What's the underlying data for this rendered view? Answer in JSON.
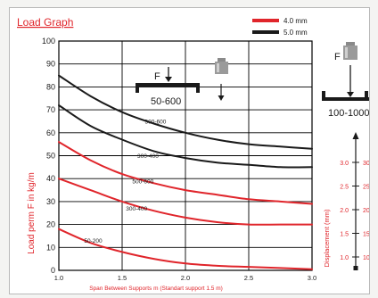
{
  "title": "Load Graph",
  "colors": {
    "red": "#e0252b",
    "black": "#1a1a1a",
    "grid": "#000000"
  },
  "legend": [
    {
      "label": "4.0 mm",
      "color": "#e0252b"
    },
    {
      "label": "5.0 mm",
      "color": "#1a1a1a"
    }
  ],
  "icons": {
    "left_load_label": "F",
    "left_range": "50-600",
    "right_load_label": "F",
    "right_range": "100-1000"
  },
  "chart_data": {
    "type": "line",
    "title": "Load Graph",
    "xlabel": "Span Between Supports m (Standart support 1.5 m)",
    "ylabel": "Load perm F in kg/m",
    "y2label": "Displacement (mm)",
    "xlim": [
      1.0,
      3.0
    ],
    "ylim": [
      0,
      100
    ],
    "x_ticks": [
      "1.0",
      "1.5",
      "2.0",
      "2.5",
      "3.0"
    ],
    "y_ticks": [
      "0",
      "10",
      "20",
      "30",
      "40",
      "50",
      "60",
      "70",
      "80",
      "90",
      "100"
    ],
    "grid": true,
    "legend_position": "top-right",
    "series": [
      {
        "name": "",
        "color": "#1a1a1a",
        "x": [
          1.0,
          1.25,
          1.5,
          1.75,
          2.0,
          2.25,
          2.5,
          2.75,
          3.0
        ],
        "y": [
          85,
          76,
          69,
          64,
          60,
          57,
          55,
          54,
          53
        ]
      },
      {
        "name": "",
        "color": "#1a1a1a",
        "x": [
          1.0,
          1.25,
          1.5,
          1.75,
          2.0,
          2.25,
          2.5,
          2.75,
          3.0
        ],
        "y": [
          72,
          63,
          57,
          52,
          49,
          47,
          46,
          45,
          45
        ]
      },
      {
        "name": "",
        "color": "#e0252b",
        "x": [
          1.0,
          1.25,
          1.5,
          1.75,
          2.0,
          2.25,
          2.5,
          2.75,
          3.0
        ],
        "y": [
          56,
          48,
          42,
          38,
          35,
          33,
          31,
          30,
          29
        ]
      },
      {
        "name": "",
        "color": "#e0252b",
        "x": [
          1.0,
          1.25,
          1.5,
          1.75,
          2.0,
          2.25,
          2.5,
          2.75,
          3.0
        ],
        "y": [
          40,
          35,
          30,
          26,
          23,
          21,
          20,
          20,
          20
        ]
      },
      {
        "name": "",
        "color": "#e0252b",
        "x": [
          1.0,
          1.25,
          1.5,
          1.75,
          2.0,
          2.25,
          2.5,
          2.75,
          3.0
        ],
        "y": [
          18,
          12,
          8,
          5,
          3,
          2,
          1.5,
          1,
          0.5
        ]
      }
    ],
    "annotations": [
      {
        "text": "500-600",
        "x": 1.68,
        "y": 64,
        "color": "#1a1a1a"
      },
      {
        "text": "300-400",
        "x": 1.62,
        "y": 49,
        "color": "#1a1a1a"
      },
      {
        "text": "500-600",
        "x": 1.58,
        "y": 38,
        "color": "#e0252b"
      },
      {
        "text": "300-400",
        "x": 1.53,
        "y": 26,
        "color": "#e0252b"
      },
      {
        "text": "50-200",
        "x": 1.2,
        "y": 12,
        "color": "#e0252b"
      }
    ],
    "displacement_axis": {
      "ticks": [
        {
          "left": "3.0",
          "right": "30"
        },
        {
          "left": "2.5",
          "right": "25"
        },
        {
          "left": "2.0",
          "right": "20"
        },
        {
          "left": "1.5",
          "right": "15"
        },
        {
          "left": "1.0",
          "right": "10"
        }
      ]
    }
  }
}
